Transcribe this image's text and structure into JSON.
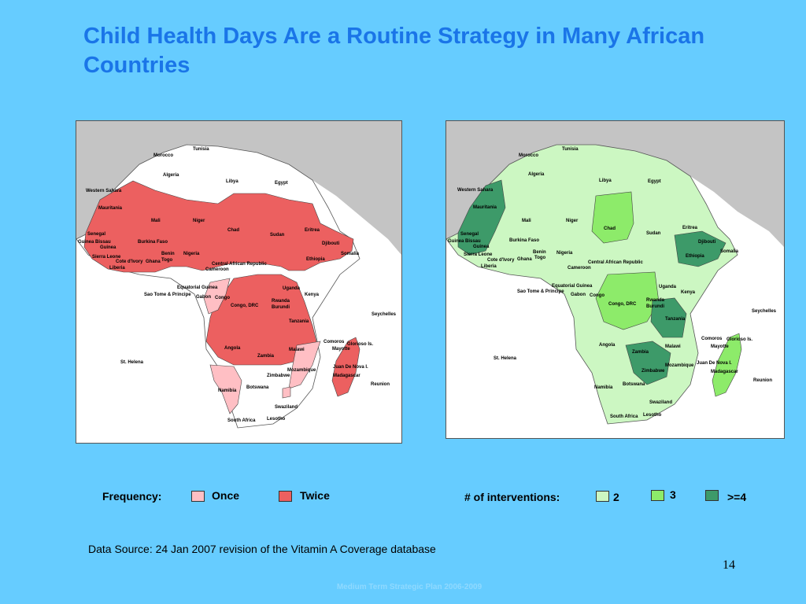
{
  "title": "Child Health Days Are a Routine Strategy in Many African Countries",
  "colors": {
    "background": "#66ccff",
    "title": "#1a75e8",
    "once": "#ffbfc4",
    "twice": "#ec6060",
    "int_2": "#ccf7c2",
    "int_3": "#8deb6a",
    "int_4plus": "#3d9a69",
    "land_other": "#ffffff",
    "outside": "#c4c4c4"
  },
  "legend_left": {
    "heading": "Frequency:",
    "items": [
      {
        "label": "Once",
        "color": "#ffbfc4"
      },
      {
        "label": "Twice",
        "color": "#ec6060"
      }
    ]
  },
  "legend_right": {
    "heading": "# of interventions:",
    "items": [
      {
        "label": "2",
        "color": "#ccf7c2"
      },
      {
        "label": "3",
        "color": "#8deb6a"
      },
      {
        "label": ">=4",
        "color": "#3d9a69"
      }
    ]
  },
  "countries": [
    "Morocco",
    "Tunisia",
    "Algeria",
    "Libya",
    "Egypt",
    "Western Sahara",
    "Mauritania",
    "Mali",
    "Niger",
    "Chad",
    "Sudan",
    "Eritrea",
    "Djibouti",
    "Senegal",
    "Guinea Bissau",
    "Guinea",
    "Sierra Leone",
    "Liberia",
    "Cote d'Ivory",
    "Burkina Faso",
    "Ghana",
    "Togo",
    "Benin",
    "Nigeria",
    "Cameroon",
    "Central African Republic",
    "Ethiopia",
    "Somalia",
    "Equatorial Guinea",
    "Sao Tome & Principe",
    "Gabon",
    "Congo",
    "Congo, DRC",
    "Uganda",
    "Kenya",
    "Rwanda",
    "Burundi",
    "Tanzania",
    "Seychelles",
    "Angola",
    "Zambia",
    "Malawi",
    "Comoros",
    "Glorioso Is.",
    "Mayotte",
    "Mozambique",
    "Juan De Nova I.",
    "Madagascar",
    "Reunion",
    "Zimbabwe",
    "Namibia",
    "Botswana",
    "St. Helena",
    "Swaziland",
    "South Africa",
    "Lesotho"
  ],
  "source": "Data Source: 24 Jan 2007 revision of the Vitamin A Coverage database",
  "page_number": "14",
  "footer": "Medium Term Strategic Plan 2006-2009"
}
